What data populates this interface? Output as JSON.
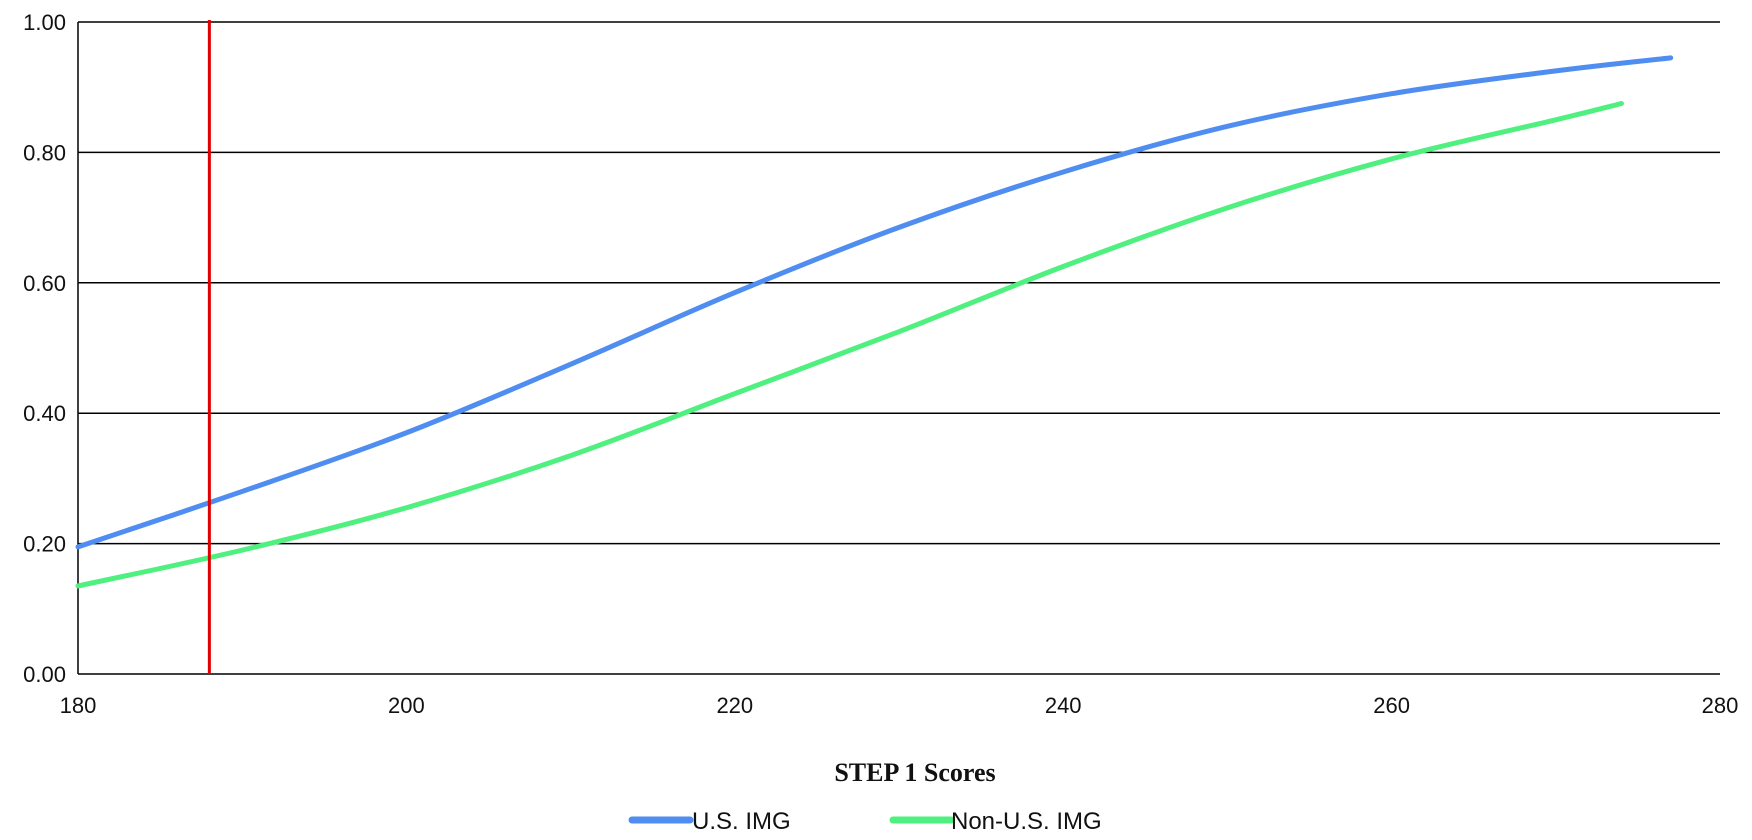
{
  "chart_data": {
    "type": "line",
    "xlabel": "STEP 1 Scores",
    "ylabel": "",
    "xlim": [
      180,
      280
    ],
    "ylim": [
      0,
      1
    ],
    "x_ticks": [
      180,
      200,
      220,
      240,
      260,
      280
    ],
    "x_tick_labels": [
      "180",
      "200",
      "220",
      "240",
      "260",
      "280"
    ],
    "y_ticks": [
      0,
      0.2,
      0.4,
      0.6,
      0.8,
      1.0
    ],
    "y_tick_labels": [
      "0.00",
      "0.20",
      "0.40",
      "0.60",
      "0.80",
      "1.00"
    ],
    "grid": "horizontal",
    "legend_position": "bottom",
    "reference_line": {
      "x": 188,
      "color": "#e00000"
    },
    "series": [
      {
        "name": "U.S. IMG",
        "color": "#4f8ef0",
        "x": [
          180,
          190,
          200,
          210,
          220,
          230,
          240,
          250,
          260,
          270,
          277
        ],
        "values": [
          0.195,
          0.28,
          0.37,
          0.475,
          0.585,
          0.685,
          0.77,
          0.84,
          0.89,
          0.925,
          0.945
        ]
      },
      {
        "name": "Non-U.S. IMG",
        "color": "#4ff07f",
        "x": [
          180,
          190,
          200,
          210,
          220,
          230,
          240,
          250,
          260,
          270,
          274
        ],
        "values": [
          0.135,
          0.19,
          0.255,
          0.335,
          0.43,
          0.525,
          0.625,
          0.715,
          0.79,
          0.85,
          0.875
        ]
      }
    ]
  }
}
